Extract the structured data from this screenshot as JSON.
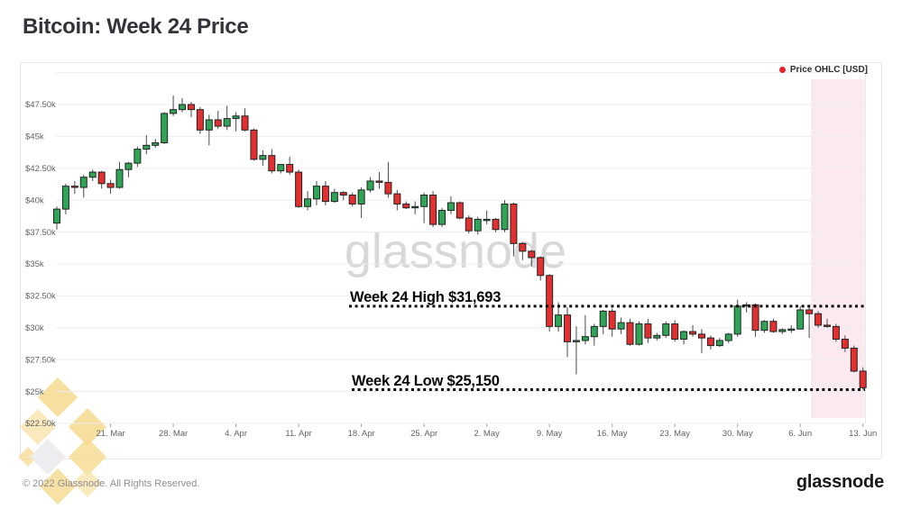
{
  "page": {
    "title": "Bitcoin: Week 24 Price"
  },
  "watermark": "glassnode",
  "footer": {
    "copyright": "© 2022 Glassnode. All Rights Reserved.",
    "brand": "glassnode"
  },
  "chart_data": {
    "type": "candlestick",
    "title": "Bitcoin: Week 24 Price",
    "legend": {
      "label": "Price OHLC [USD]",
      "marker_color": "#e8212e",
      "position": "top-right"
    },
    "colors": {
      "up": "#2fa356",
      "down": "#e1302f",
      "body_border": "#222222",
      "wick": "#4a4a4a",
      "grid": "#ededf0",
      "band": "#fbe9f0",
      "annotation": "#0a0a0a",
      "axis_text": "#5f6368"
    },
    "y_axis": {
      "unit": "USD",
      "ylim": [
        22500,
        50000
      ],
      "tick_values": [
        47500,
        45000,
        42500,
        40000,
        37500,
        35000,
        32500,
        30000,
        27500,
        25000,
        22500
      ],
      "tick_labels": [
        "$47.50k",
        "$45k",
        "$42.50k",
        "$40k",
        "$37.50k",
        "$35k",
        "$32.50k",
        "$30k",
        "$27.50k",
        "$25k",
        "$22.50k"
      ],
      "grid_values": [
        50000,
        47500,
        45000,
        42500,
        40000,
        37500,
        35000,
        32500,
        30000,
        27500,
        25000,
        22500
      ]
    },
    "x_axis": {
      "ticks": [
        {
          "label": "21. Mar",
          "day_index": 6
        },
        {
          "label": "28. Mar",
          "day_index": 13
        },
        {
          "label": "4. Apr",
          "day_index": 20
        },
        {
          "label": "11. Apr",
          "day_index": 27
        },
        {
          "label": "18. Apr",
          "day_index": 34
        },
        {
          "label": "25. Apr",
          "day_index": 41
        },
        {
          "label": "2. May",
          "day_index": 48
        },
        {
          "label": "9. May",
          "day_index": 55
        },
        {
          "label": "16. May",
          "day_index": 62
        },
        {
          "label": "23. May",
          "day_index": 69
        },
        {
          "label": "30. May",
          "day_index": 76
        },
        {
          "label": "6. Jun",
          "day_index": 83
        },
        {
          "label": "13. Jun",
          "day_index": 90
        }
      ]
    },
    "annotations": [
      {
        "label": "Week 24 High $31,693",
        "price": 31693
      },
      {
        "label": "Week 24 Low $25,150",
        "price": 25150
      }
    ],
    "highlight_band": {
      "start_day_index": 84.2,
      "end_day_index": 90.2,
      "color": "#fbe9f0"
    },
    "candles_ohlc_usd": [
      [
        38200,
        39500,
        37700,
        39300
      ],
      [
        39300,
        41300,
        38900,
        41100
      ],
      [
        41100,
        41500,
        40500,
        41000
      ],
      [
        41000,
        42000,
        40200,
        41800
      ],
      [
        41800,
        42400,
        41500,
        42200
      ],
      [
        42200,
        42300,
        40900,
        41300
      ],
      [
        41300,
        41600,
        40500,
        41000
      ],
      [
        41000,
        43000,
        40900,
        42400
      ],
      [
        42400,
        43000,
        41800,
        42900
      ],
      [
        42900,
        44200,
        42600,
        44000
      ],
      [
        44000,
        45100,
        43600,
        44300
      ],
      [
        44300,
        44800,
        44100,
        44500
      ],
      [
        44500,
        46900,
        44400,
        46800
      ],
      [
        46800,
        48200,
        46600,
        47100
      ],
      [
        47100,
        48000,
        46900,
        47500
      ],
      [
        47500,
        47700,
        46500,
        47100
      ],
      [
        47100,
        47300,
        45200,
        45500
      ],
      [
        45500,
        46700,
        44300,
        46300
      ],
      [
        46300,
        47000,
        45600,
        45800
      ],
      [
        45800,
        47400,
        45500,
        46400
      ],
      [
        46400,
        46900,
        45400,
        46600
      ],
      [
        46600,
        47200,
        45400,
        45500
      ],
      [
        45500,
        45600,
        43100,
        43200
      ],
      [
        43200,
        43900,
        42700,
        43500
      ],
      [
        43500,
        44000,
        42100,
        42300
      ],
      [
        42300,
        42800,
        42100,
        42800
      ],
      [
        42800,
        43400,
        42000,
        42200
      ],
      [
        42200,
        42400,
        39400,
        39500
      ],
      [
        39500,
        40700,
        39200,
        40100
      ],
      [
        40100,
        41500,
        39600,
        41100
      ],
      [
        41100,
        41500,
        39600,
        39900
      ],
      [
        39900,
        40900,
        39800,
        40600
      ],
      [
        40600,
        40700,
        40000,
        40400
      ],
      [
        40400,
        40600,
        39500,
        39700
      ],
      [
        39700,
        41000,
        38600,
        40800
      ],
      [
        40800,
        41800,
        40600,
        41500
      ],
      [
        41500,
        42200,
        40900,
        41400
      ],
      [
        41400,
        43000,
        40200,
        40500
      ],
      [
        40500,
        40800,
        39200,
        39700
      ],
      [
        39700,
        39900,
        39300,
        39400
      ],
      [
        39400,
        39900,
        38900,
        39500
      ],
      [
        39500,
        40600,
        38200,
        40400
      ],
      [
        40400,
        40700,
        37900,
        38100
      ],
      [
        38100,
        39400,
        37900,
        39200
      ],
      [
        39200,
        40300,
        38900,
        39800
      ],
      [
        39800,
        39900,
        38500,
        38600
      ],
      [
        38600,
        38800,
        37400,
        37600
      ],
      [
        37600,
        38700,
        37300,
        38500
      ],
      [
        38500,
        39200,
        38100,
        38500
      ],
      [
        38500,
        38600,
        37500,
        37700
      ],
      [
        37700,
        40000,
        37500,
        39700
      ],
      [
        39700,
        39800,
        35600,
        36600
      ],
      [
        36600,
        36700,
        35300,
        36000
      ],
      [
        36000,
        36100,
        34800,
        35500
      ],
      [
        35500,
        35600,
        33700,
        34100
      ],
      [
        34100,
        34200,
        29700,
        30100
      ],
      [
        30100,
        32000,
        29700,
        31000
      ],
      [
        31000,
        31600,
        27700,
        28900
      ],
      [
        28900,
        30100,
        26350,
        29000
      ],
      [
        29000,
        31000,
        28700,
        29300
      ],
      [
        29300,
        30300,
        28600,
        30100
      ],
      [
        30100,
        31400,
        29500,
        31300
      ],
      [
        31300,
        31500,
        29300,
        29900
      ],
      [
        29900,
        30800,
        29500,
        30400
      ],
      [
        30400,
        30700,
        28600,
        28700
      ],
      [
        28700,
        30500,
        28600,
        30300
      ],
      [
        30300,
        30700,
        28800,
        29200
      ],
      [
        29200,
        29600,
        29000,
        29400
      ],
      [
        29400,
        30500,
        29200,
        30300
      ],
      [
        30300,
        30600,
        28900,
        29100
      ],
      [
        29100,
        29800,
        28700,
        29700
      ],
      [
        29700,
        30200,
        29300,
        29500
      ],
      [
        29500,
        29900,
        28000,
        29200
      ],
      [
        29200,
        29400,
        28300,
        28600
      ],
      [
        28600,
        29200,
        28500,
        29000
      ],
      [
        29000,
        29600,
        28800,
        29500
      ],
      [
        29500,
        32200,
        29300,
        31700
      ],
      [
        31700,
        32000,
        31200,
        31800
      ],
      [
        31800,
        31900,
        29300,
        29800
      ],
      [
        29800,
        30600,
        29600,
        30500
      ],
      [
        30500,
        30700,
        29600,
        29700
      ],
      [
        29700,
        29950,
        29500,
        29850
      ],
      [
        29850,
        30200,
        29600,
        29900
      ],
      [
        29900,
        31700,
        29900,
        31400
      ],
      [
        31400,
        31700,
        29200,
        31100
      ],
      [
        31100,
        31300,
        30000,
        30200
      ],
      [
        30200,
        30700,
        30000,
        30100
      ],
      [
        30100,
        30300,
        28900,
        29100
      ],
      [
        29100,
        29400,
        28100,
        28400
      ],
      [
        28400,
        28600,
        26500,
        26600
      ],
      [
        26600,
        26900,
        25150,
        25300
      ]
    ]
  }
}
